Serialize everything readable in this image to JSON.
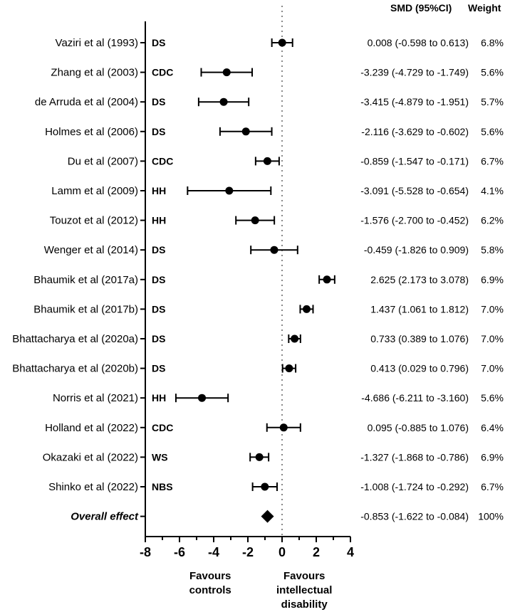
{
  "chart_data": {
    "type": "forest",
    "header": {
      "smd": "SMD (95%CI)",
      "weight": "Weight"
    },
    "xlim": [
      -8,
      4
    ],
    "ticks": [
      -8,
      -6,
      -4,
      -2,
      0,
      2,
      4
    ],
    "tick_labels": [
      "-8",
      "-6",
      "-4",
      "-2",
      "0",
      "2",
      "4"
    ],
    "reference_line": 0,
    "studies": [
      {
        "name": "Vaziri et al (1993)",
        "group": "DS",
        "smd": 0.008,
        "lo": -0.598,
        "hi": 0.613,
        "ci_text": "0.008 (-0.598 to 0.613)",
        "weight": "6.8%"
      },
      {
        "name": "Zhang et al (2003)",
        "group": "CDC",
        "smd": -3.239,
        "lo": -4.729,
        "hi": -1.749,
        "ci_text": "-3.239 (-4.729 to -1.749)",
        "weight": "5.6%"
      },
      {
        "name": "de Arruda et al (2004)",
        "group": "DS",
        "smd": -3.415,
        "lo": -4.879,
        "hi": -1.951,
        "ci_text": "-3.415 (-4.879 to -1.951)",
        "weight": "5.7%"
      },
      {
        "name": "Holmes et al (2006)",
        "group": "DS",
        "smd": -2.116,
        "lo": -3.629,
        "hi": -0.602,
        "ci_text": "-2.116 (-3.629 to -0.602)",
        "weight": "5.6%"
      },
      {
        "name": "Du et al (2007)",
        "group": "CDC",
        "smd": -0.859,
        "lo": -1.547,
        "hi": -0.171,
        "ci_text": "-0.859 (-1.547 to -0.171)",
        "weight": "6.7%"
      },
      {
        "name": "Lamm et al (2009)",
        "group": "HH",
        "smd": -3.091,
        "lo": -5.528,
        "hi": -0.654,
        "ci_text": "-3.091 (-5.528 to -0.654)",
        "weight": "4.1%"
      },
      {
        "name": "Touzot et al (2012)",
        "group": "HH",
        "smd": -1.576,
        "lo": -2.7,
        "hi": -0.452,
        "ci_text": "-1.576 (-2.700 to -0.452)",
        "weight": "6.2%"
      },
      {
        "name": "Wenger et al (2014)",
        "group": "DS",
        "smd": -0.459,
        "lo": -1.826,
        "hi": 0.909,
        "ci_text": "-0.459 (-1.826 to 0.909)",
        "weight": "5.8%"
      },
      {
        "name": "Bhaumik et al (2017a)",
        "group": "DS",
        "smd": 2.625,
        "lo": 2.173,
        "hi": 3.078,
        "ci_text": "2.625 (2.173 to 3.078)",
        "weight": "6.9%"
      },
      {
        "name": "Bhaumik et al (2017b)",
        "group": "DS",
        "smd": 1.437,
        "lo": 1.061,
        "hi": 1.812,
        "ci_text": "1.437 (1.061 to 1.812)",
        "weight": "7.0%"
      },
      {
        "name": "Bhattacharya et al (2020a)",
        "group": "DS",
        "smd": 0.733,
        "lo": 0.389,
        "hi": 1.076,
        "ci_text": "0.733 (0.389 to 1.076)",
        "weight": "7.0%"
      },
      {
        "name": "Bhattacharya et al (2020b)",
        "group": "DS",
        "smd": 0.413,
        "lo": 0.029,
        "hi": 0.796,
        "ci_text": "0.413 (0.029 to 0.796)",
        "weight": "7.0%"
      },
      {
        "name": "Norris et al (2021)",
        "group": "HH",
        "smd": -4.686,
        "lo": -6.211,
        "hi": -3.16,
        "ci_text": "-4.686 (-6.211 to -3.160)",
        "weight": "5.6%"
      },
      {
        "name": "Holland et al (2022)",
        "group": "CDC",
        "smd": 0.095,
        "lo": -0.885,
        "hi": 1.076,
        "ci_text": "0.095 (-0.885 to 1.076)",
        "weight": "6.4%"
      },
      {
        "name": "Okazaki et al (2022)",
        "group": "WS",
        "smd": -1.327,
        "lo": -1.868,
        "hi": -0.786,
        "ci_text": "-1.327 (-1.868 to -0.786)",
        "weight": "6.9%"
      },
      {
        "name": "Shinko et al (2022)",
        "group": "NBS",
        "smd": -1.008,
        "lo": -1.724,
        "hi": -0.292,
        "ci_text": "-1.008 (-1.724 to -0.292)",
        "weight": "6.7%"
      }
    ],
    "overall": {
      "name": "Overall effect",
      "smd": -0.853,
      "lo": -1.622,
      "hi": -0.084,
      "ci_text": "-0.853 (-1.622 to -0.084)",
      "weight": "100%"
    },
    "favours_left": [
      "Favours",
      "controls"
    ],
    "favours_right": [
      "Favours",
      "intellectual",
      "disability"
    ]
  }
}
